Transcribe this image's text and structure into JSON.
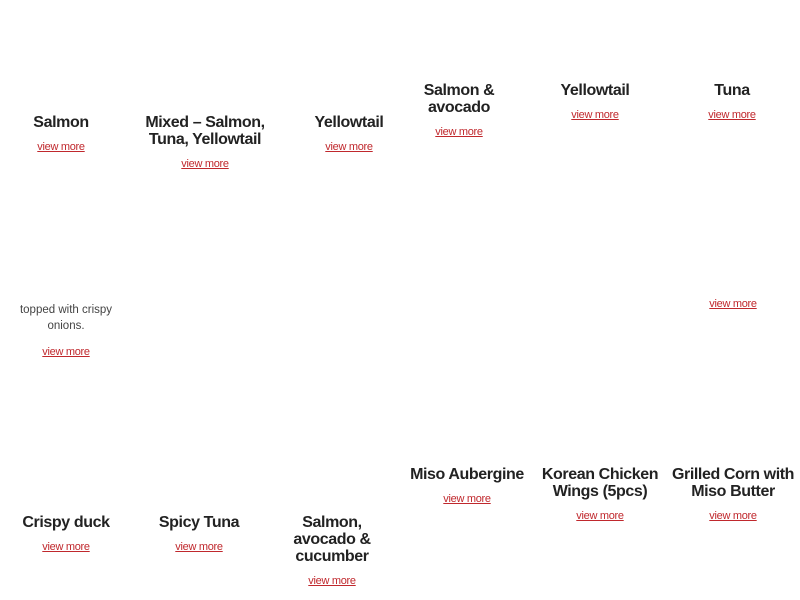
{
  "menu": {
    "rows": [
      {
        "items": [
          {
            "title": "Salmon",
            "link": "view more"
          },
          {
            "title": "Mixed – Salmon, Tuna, Yellowtail",
            "link": "view more"
          },
          {
            "title": "Yellowtail",
            "link": "view more"
          },
          {
            "title": "Salmon & avocado",
            "link": "view more"
          },
          {
            "title": "Yellowtail",
            "link": "view more"
          },
          {
            "title": "Tuna",
            "link": "view more"
          }
        ]
      },
      {
        "items": [
          {
            "description": "topped with crispy onions.",
            "link": "view more"
          },
          {
            "link": "view more"
          }
        ]
      },
      {
        "items": [
          {
            "title": "Crispy duck",
            "link": "view more"
          },
          {
            "title": "Spicy Tuna",
            "link": "view more"
          },
          {
            "title": "Salmon, avocado & cucumber",
            "link": "view more"
          },
          {
            "title": "Miso Aubergine",
            "link": "view more"
          },
          {
            "title": "Korean Chicken Wings (5pcs)",
            "link": "view more"
          },
          {
            "title": "Grilled Corn with Miso Butter",
            "link": "view more"
          }
        ]
      }
    ]
  }
}
